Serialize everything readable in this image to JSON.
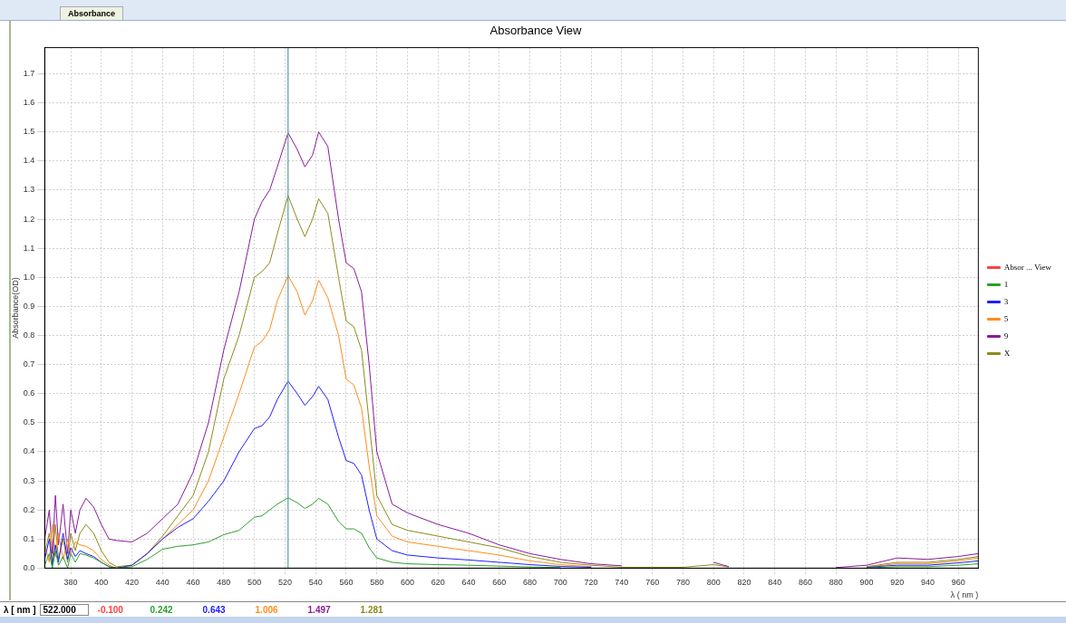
{
  "chart_data": {
    "type": "line",
    "title": "Absorbance View",
    "xlabel": "λ ( nm )",
    "ylabel": "Absorbance(OD)",
    "annotations": [
      "Absorbance",
      "λ [ nm ]",
      "522.000",
      "-0.100",
      "0.242",
      "0.643",
      "1.006",
      "1.497",
      "1.281"
    ],
    "x": [
      363,
      366,
      368,
      370,
      372,
      375,
      378,
      380,
      383,
      386,
      390,
      395,
      400,
      405,
      410,
      420,
      430,
      440,
      450,
      460,
      470,
      480,
      490,
      500,
      505,
      510,
      515,
      522,
      528,
      533,
      538,
      542,
      548,
      555,
      560,
      565,
      570,
      575,
      580,
      590,
      600,
      620,
      640,
      660,
      680,
      700,
      720,
      740,
      760,
      780,
      800,
      810,
      820,
      840,
      860,
      880,
      900,
      920,
      940,
      960,
      973
    ],
    "series": [
      {
        "name": "Absor ... View",
        "color": "#ff4040",
        "values": [
          null,
          null,
          null,
          null,
          null,
          null,
          null,
          null,
          null,
          null,
          null,
          null,
          null,
          null,
          null,
          null,
          null,
          null,
          null,
          null,
          null,
          null,
          null,
          null,
          null,
          null,
          null,
          null,
          null,
          null,
          null,
          null,
          null,
          null,
          null,
          null,
          null,
          null,
          null,
          null,
          null,
          null,
          null,
          null,
          null,
          null,
          null,
          null,
          null,
          null,
          null,
          null,
          null,
          null,
          null,
          null,
          null,
          null,
          null,
          null,
          null
        ]
      },
      {
        "name": "1",
        "color": "#2ca02c",
        "values": [
          0.01,
          0.05,
          0.0,
          0.06,
          0.01,
          0.04,
          0.0,
          0.05,
          0.02,
          0.05,
          0.045,
          0.035,
          0.02,
          0.005,
          0,
          0.005,
          0.03,
          0.065,
          0.075,
          0.08,
          0.09,
          0.115,
          0.13,
          0.175,
          0.18,
          0.2,
          0.22,
          0.242,
          0.225,
          0.205,
          0.22,
          0.24,
          0.22,
          0.16,
          0.135,
          0.135,
          0.12,
          0.07,
          0.035,
          0.02,
          0.015,
          0.012,
          0.01,
          0.007,
          0.004,
          0.002,
          null,
          null,
          null,
          null,
          null,
          null,
          null,
          null,
          null,
          null,
          0.001,
          0.005,
          0.005,
          0.01,
          0.015
        ]
      },
      {
        "name": "3",
        "color": "#2020ff",
        "values": [
          0.03,
          0.1,
          0.01,
          0.08,
          0.02,
          0.12,
          0.03,
          0.07,
          0.04,
          0.06,
          0.05,
          0.04,
          0.02,
          0.005,
          0,
          0.01,
          0.05,
          0.1,
          0.14,
          0.17,
          0.23,
          0.3,
          0.4,
          0.48,
          0.49,
          0.52,
          0.58,
          0.643,
          0.6,
          0.56,
          0.59,
          0.625,
          0.58,
          0.45,
          0.37,
          0.36,
          0.32,
          0.2,
          0.1,
          0.06,
          0.045,
          0.035,
          0.028,
          0.02,
          0.012,
          0.006,
          0.003,
          null,
          null,
          null,
          null,
          null,
          null,
          null,
          null,
          null,
          0.003,
          0.01,
          0.01,
          0.018,
          0.025
        ]
      },
      {
        "name": "5",
        "color": "#ff8c1a",
        "values": [
          0.08,
          0.02,
          0.15,
          0.04,
          0.12,
          0.03,
          0.1,
          0.05,
          0.09,
          0.08,
          0.075,
          0.06,
          0.03,
          0.01,
          0,
          0.01,
          0.05,
          0.1,
          0.15,
          0.2,
          0.3,
          0.45,
          0.6,
          0.76,
          0.78,
          0.82,
          0.92,
          1.006,
          0.95,
          0.87,
          0.92,
          0.99,
          0.93,
          0.8,
          0.65,
          0.63,
          0.55,
          0.35,
          0.18,
          0.11,
          0.09,
          0.075,
          0.06,
          0.045,
          0.025,
          0.012,
          0.005,
          null,
          null,
          null,
          null,
          null,
          null,
          null,
          null,
          null,
          0.004,
          0.015,
          0.015,
          0.025,
          0.035
        ]
      },
      {
        "name": "9",
        "color": "#8b1a9b",
        "values": [
          0.1,
          0.2,
          0.05,
          0.25,
          0.08,
          0.22,
          0.05,
          0.2,
          0.12,
          0.2,
          0.24,
          0.21,
          0.15,
          0.1,
          0.095,
          0.09,
          0.12,
          0.17,
          0.22,
          0.33,
          0.5,
          0.75,
          0.95,
          1.2,
          1.26,
          1.3,
          1.38,
          1.497,
          1.44,
          1.38,
          1.42,
          1.5,
          1.45,
          1.2,
          1.05,
          1.03,
          0.95,
          0.7,
          0.4,
          0.22,
          0.19,
          0.15,
          0.12,
          0.08,
          0.05,
          0.03,
          0.015,
          0.008,
          null,
          null,
          0.02,
          0.005,
          null,
          null,
          null,
          0.002,
          0.01,
          0.035,
          0.03,
          0.04,
          0.05
        ]
      },
      {
        "name": "X",
        "color": "#8b8b1a",
        "values": [
          0.05,
          0.12,
          0.02,
          0.15,
          0.03,
          0.1,
          0.02,
          0.12,
          0.06,
          0.12,
          0.15,
          0.12,
          0.06,
          0.02,
          0.005,
          0.01,
          0.05,
          0.11,
          0.18,
          0.25,
          0.4,
          0.65,
          0.8,
          1.0,
          1.02,
          1.05,
          1.15,
          1.281,
          1.2,
          1.14,
          1.2,
          1.27,
          1.22,
          1.0,
          0.85,
          0.83,
          0.75,
          0.5,
          0.25,
          0.15,
          0.13,
          0.11,
          0.09,
          0.07,
          0.04,
          0.02,
          0.01,
          0.003,
          0.003,
          0.003,
          0.012,
          0.004,
          null,
          null,
          null,
          null,
          0.005,
          0.02,
          0.02,
          0.03,
          0.04
        ]
      }
    ],
    "xlim": [
      363,
      973
    ],
    "xticks": [
      380,
      400,
      420,
      440,
      460,
      480,
      500,
      520,
      540,
      560,
      580,
      600,
      620,
      640,
      660,
      680,
      700,
      720,
      740,
      760,
      780,
      800,
      820,
      840,
      860,
      880,
      900,
      920,
      940,
      960
    ],
    "ylim": [
      0,
      1.79
    ],
    "yticks": [
      {
        "value": 0,
        "label": "0.0"
      },
      0.1,
      0.2,
      0.3,
      0.4,
      0.5,
      0.6,
      0.7,
      0.8,
      0.9,
      {
        "value": 1,
        "label": "1.0"
      },
      1.1,
      1.2,
      1.3,
      1.4,
      1.5,
      1.6,
      1.7
    ],
    "ref_lines": [
      {
        "axis": "x",
        "value": 522,
        "color": "#5f9ea0"
      }
    ],
    "grid": true,
    "legend": "right"
  }
}
